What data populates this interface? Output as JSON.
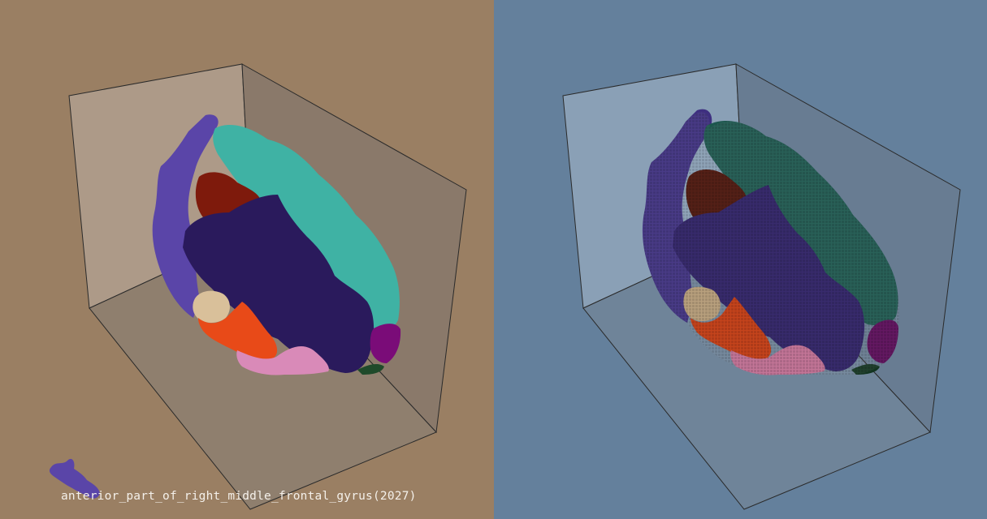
{
  "left_view": {
    "background": "#9a7f63",
    "render_style": "smooth-surface",
    "selected_region_label": "anterior_part_of_right_middle_frontal_gyrus(2027)"
  },
  "right_view": {
    "background": "#64809c",
    "render_style": "voxel"
  },
  "region_colors": {
    "blue_violet": "#5a45a8",
    "teal": "#3fb2a4",
    "dark_red": "#7e1a0c",
    "indigo": "#2a1a5c",
    "beige": "#d9c09a",
    "orange_red": "#e84a18",
    "pink": "#d98ab8",
    "magenta": "#7a0c78",
    "dark_green": "#1f4a2a"
  }
}
